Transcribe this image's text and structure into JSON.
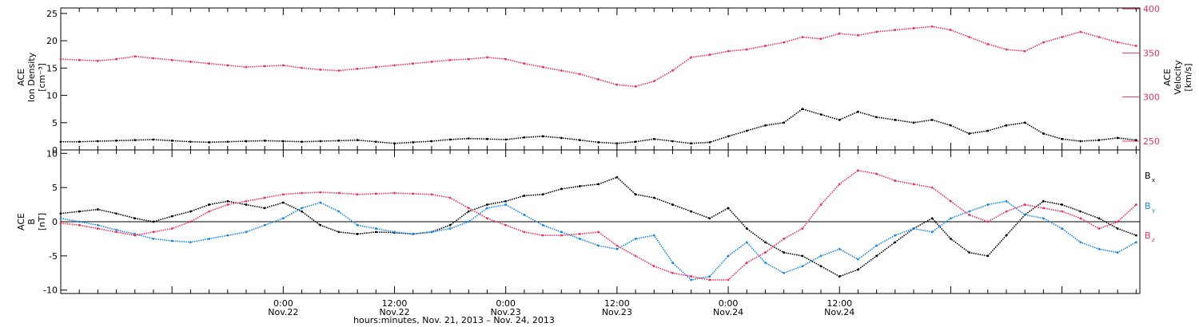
{
  "chart_data": [
    {
      "type": "scatter",
      "panel": "top",
      "ylabel_left_lines": [
        "ACE",
        "Ion Density",
        "[cm⁻³]"
      ],
      "ylabel_right_lines": [
        "ACE",
        "Velocity",
        "[km/s]"
      ],
      "ylim_left": [
        0,
        26
      ],
      "ylim_right": [
        240,
        401
      ],
      "yticks_left": [
        0,
        5,
        10,
        15,
        20,
        25
      ],
      "yticks_right": [
        250,
        300,
        350,
        400
      ],
      "x_hours": [
        0,
        2,
        4,
        6,
        8,
        10,
        12,
        14,
        16,
        18,
        20,
        22,
        24,
        26,
        28,
        30,
        32,
        34,
        36,
        38,
        40,
        42,
        44,
        46,
        48,
        50,
        52,
        54,
        56,
        58,
        60,
        62,
        64,
        66,
        68,
        70,
        72,
        74,
        76,
        78,
        80,
        82,
        84,
        86,
        88,
        90,
        92,
        94,
        96,
        98,
        100,
        102,
        104,
        106,
        108,
        110,
        112,
        114,
        116
      ],
      "series": [
        {
          "key": "density",
          "axis": "left",
          "color": "#000000",
          "values": [
            1.5,
            1.5,
            1.6,
            1.7,
            1.8,
            1.9,
            1.7,
            1.5,
            1.4,
            1.5,
            1.6,
            1.7,
            1.6,
            1.5,
            1.6,
            1.7,
            1.8,
            1.5,
            1.2,
            1.4,
            1.6,
            1.9,
            2.1,
            2.0,
            1.9,
            2.3,
            2.5,
            2.2,
            1.8,
            1.4,
            1.2,
            1.5,
            2.0,
            1.6,
            1.2,
            1.4,
            2.5,
            3.5,
            4.5,
            5.0,
            7.5,
            6.5,
            5.5,
            7.0,
            6.0,
            5.5,
            5.0,
            5.5,
            4.5,
            3.0,
            3.5,
            4.5,
            5.0,
            3.0,
            2.0,
            1.6,
            1.8,
            2.2,
            1.8
          ]
        },
        {
          "key": "velocity",
          "axis": "right",
          "color": "#e8325f",
          "values": [
            343,
            342,
            341,
            343,
            346,
            344,
            342,
            340,
            338,
            336,
            334,
            335,
            336,
            333,
            331,
            330,
            332,
            334,
            336,
            338,
            340,
            342,
            343,
            345,
            343,
            338,
            334,
            330,
            326,
            320,
            314,
            312,
            318,
            330,
            345,
            348,
            352,
            354,
            358,
            362,
            368,
            366,
            372,
            370,
            374,
            376,
            378,
            380,
            376,
            368,
            360,
            354,
            352,
            362,
            368,
            374,
            368,
            362,
            358
          ]
        }
      ]
    },
    {
      "type": "scatter",
      "panel": "bottom",
      "ylabel_left_lines": [
        "ACE",
        "B",
        "[nT]"
      ],
      "ylim": [
        -10.5,
        10.5
      ],
      "yticks": [
        -10,
        -5,
        0,
        5,
        10
      ],
      "x_hours": [
        0,
        2,
        4,
        6,
        8,
        10,
        12,
        14,
        16,
        18,
        20,
        22,
        24,
        26,
        28,
        30,
        32,
        34,
        36,
        38,
        40,
        42,
        44,
        46,
        48,
        50,
        52,
        54,
        56,
        58,
        60,
        62,
        64,
        66,
        68,
        70,
        72,
        74,
        76,
        78,
        80,
        82,
        84,
        86,
        88,
        90,
        92,
        94,
        96,
        98,
        100,
        102,
        104,
        106,
        108,
        110,
        112,
        114,
        116
      ],
      "series": [
        {
          "key": "bx",
          "color": "#000000",
          "values": [
            1.2,
            1.5,
            1.8,
            1.2,
            0.5,
            0.0,
            0.8,
            1.5,
            2.5,
            3.0,
            2.5,
            2.0,
            2.8,
            1.5,
            -0.5,
            -1.5,
            -1.8,
            -1.5,
            -1.6,
            -1.8,
            -1.5,
            -0.5,
            1.5,
            2.5,
            3.0,
            3.8,
            4.0,
            4.8,
            5.2,
            5.5,
            6.5,
            4.0,
            3.5,
            2.5,
            1.5,
            0.5,
            2.0,
            -1.0,
            -3.0,
            -4.5,
            -5.0,
            -6.5,
            -8.0,
            -7.0,
            -5.0,
            -3.0,
            -1.0,
            0.5,
            -2.5,
            -4.5,
            -5.0,
            -2.0,
            1.0,
            3.0,
            2.5,
            1.5,
            0.5,
            -1.0,
            -2.0
          ]
        },
        {
          "key": "by",
          "color": "#1a86e0",
          "values": [
            0.5,
            0.0,
            -0.5,
            -1.2,
            -1.8,
            -2.5,
            -2.8,
            -3.0,
            -2.5,
            -2.0,
            -1.5,
            -0.5,
            0.5,
            2.0,
            2.8,
            1.5,
            -0.5,
            -1.0,
            -1.5,
            -1.8,
            -1.5,
            -1.0,
            0.0,
            2.0,
            2.5,
            1.0,
            -0.5,
            -1.5,
            -2.5,
            -3.5,
            -4.0,
            -2.5,
            -2.0,
            -6.0,
            -8.5,
            -8.0,
            -5.0,
            -3.0,
            -6.0,
            -7.5,
            -6.5,
            -5.0,
            -4.0,
            -5.5,
            -3.5,
            -2.0,
            -1.0,
            -1.5,
            0.5,
            1.5,
            2.5,
            3.0,
            1.0,
            0.5,
            -1.0,
            -3.0,
            -4.0,
            -4.5,
            -3.0
          ]
        },
        {
          "key": "bz",
          "color": "#e8325f",
          "values": [
            -0.2,
            -0.5,
            -1.0,
            -1.5,
            -2.0,
            -1.5,
            -1.0,
            0.0,
            1.5,
            2.5,
            3.0,
            3.5,
            4.0,
            4.2,
            4.3,
            4.2,
            4.0,
            4.1,
            4.2,
            4.1,
            4.0,
            3.5,
            2.0,
            0.5,
            -0.5,
            -1.5,
            -2.0,
            -2.0,
            -1.8,
            -1.5,
            -3.5,
            -5.0,
            -6.5,
            -7.5,
            -8.0,
            -8.5,
            -8.5,
            -6.0,
            -4.5,
            -2.5,
            -1.0,
            2.5,
            5.5,
            7.5,
            7.0,
            6.0,
            5.5,
            5.0,
            3.0,
            1.0,
            0.0,
            1.5,
            2.5,
            2.0,
            1.5,
            0.5,
            -1.0,
            0.0,
            2.5
          ]
        }
      ],
      "legend": [
        {
          "main": "B",
          "sub": "x",
          "color": "#000000"
        },
        {
          "main": "B",
          "sub": "y",
          "color": "#1a86e0"
        },
        {
          "main": "B",
          "sub": "z",
          "color": "#e8325f"
        }
      ]
    }
  ],
  "x_axis": {
    "ticks": [
      {
        "hour": 24,
        "time": "0:00",
        "date": "Nov.22"
      },
      {
        "hour": 36,
        "time": "12:00",
        "date": "Nov.22"
      },
      {
        "hour": 48,
        "time": "0:00",
        "date": "Nov.23"
      },
      {
        "hour": 60,
        "time": "12:00",
        "date": "Nov.23"
      },
      {
        "hour": 72,
        "time": "0:00",
        "date": "Nov.24"
      },
      {
        "hour": 84,
        "time": "12:00",
        "date": "Nov.24"
      }
    ],
    "label": "hours:minutes, Nov. 21, 2013 – Nov. 24, 2013"
  }
}
